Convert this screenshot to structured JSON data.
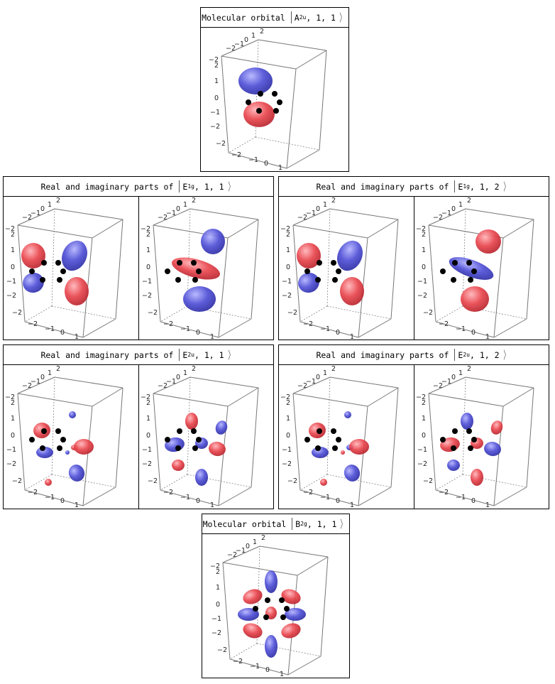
{
  "panels": [
    {
      "id": "a2u",
      "kind": "single",
      "header_prefix": "Molecular orbital",
      "irrep_base": "A",
      "irrep_sub": "2u",
      "indices": ", 1, 1",
      "plots": [
        "A2u"
      ]
    },
    {
      "id": "e1g-1",
      "kind": "pair",
      "header_prefix": "Real and imaginary parts of",
      "irrep_base": "E",
      "irrep_sub": "1g",
      "indices": ", 1, 1",
      "plots": [
        "E1g_1_re",
        "E1g_1_im"
      ]
    },
    {
      "id": "e1g-2",
      "kind": "pair",
      "header_prefix": "Real and imaginary parts of",
      "irrep_base": "E",
      "irrep_sub": "1g",
      "indices": ", 1, 2",
      "plots": [
        "E1g_2_re",
        "E1g_2_im"
      ]
    },
    {
      "id": "e2u-1",
      "kind": "pair",
      "header_prefix": "Real and imaginary parts of",
      "irrep_base": "E",
      "irrep_sub": "2u",
      "indices": ", 1, 1",
      "plots": [
        "E2u_1_re",
        "E2u_1_im"
      ]
    },
    {
      "id": "e2u-2",
      "kind": "pair",
      "header_prefix": "Real and imaginary parts of",
      "irrep_base": "E",
      "irrep_sub": "2u",
      "indices": ", 1, 2",
      "plots": [
        "E2u_2_re",
        "E2u_2_im"
      ]
    },
    {
      "id": "b2g",
      "kind": "single",
      "header_prefix": "Molecular orbital",
      "irrep_base": "B",
      "irrep_sub": "2g",
      "indices": ", 1, 1",
      "plots": [
        "B2g"
      ]
    }
  ],
  "axis_ticks": {
    "top_edge": [
      "2",
      "0",
      "−2"
    ],
    "top_minor": [
      "1",
      "−1"
    ],
    "left_upper": [
      "−2",
      "2"
    ],
    "vertical": [
      "1",
      "0",
      "−1",
      "−2"
    ],
    "bottom_edge": [
      "−2",
      "−1",
      "0",
      "1",
      "2"
    ]
  },
  "colors": {
    "positive_lobe": "#e8454c",
    "negative_lobe": "#4f4fd6",
    "atom": "#000000",
    "box_edge": "#777777"
  }
}
